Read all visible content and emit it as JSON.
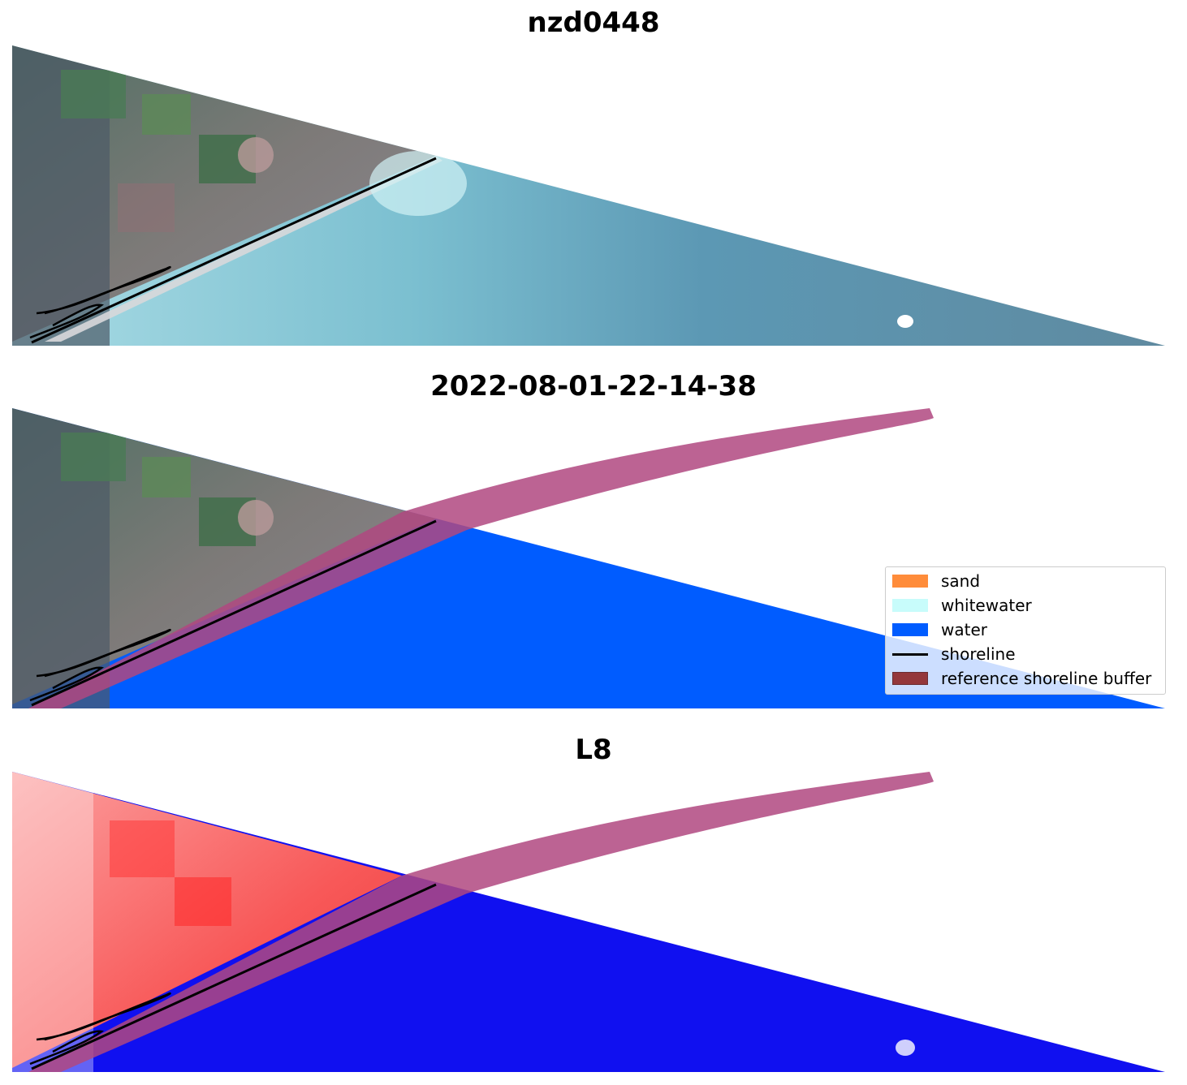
{
  "panels": [
    {
      "title": "nzd0448"
    },
    {
      "title": "2022-08-01-22-14-38"
    },
    {
      "title": "L8"
    }
  ],
  "legend": {
    "items": [
      {
        "label": "sand",
        "color": "#ff8c3a"
      },
      {
        "label": "whitewater",
        "color": "#c8fcfb"
      },
      {
        "label": "water",
        "color": "#005cff"
      },
      {
        "label": "shoreline",
        "color": "#000000"
      },
      {
        "label": "reference shoreline buffer",
        "color": "#8b1a1a"
      }
    ]
  },
  "colors": {
    "land_rgb": "#5d7a68",
    "sea_rgb": "#5c98b4",
    "water_class": "#005cff",
    "buffer": "#b04880",
    "ndwi_land": "#f85858",
    "ndwi_water": "#1010f0"
  }
}
